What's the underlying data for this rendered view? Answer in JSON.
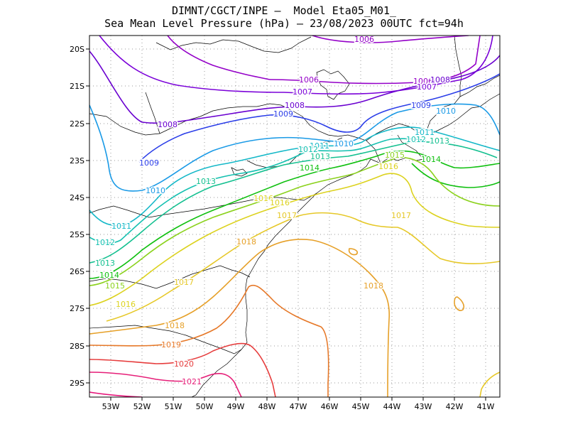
{
  "title": {
    "line1": "DIMNT/CGCT/INPE –  Model Eta05_M01_",
    "line2": "Sea Mean Level Pressure (hPa) – 23/08/2023 00UTC fct=94h"
  },
  "axes": {
    "lon_labels": [
      "53W",
      "52W",
      "51W",
      "50W",
      "49W",
      "48W",
      "47W",
      "46W",
      "45W",
      "44W",
      "43W",
      "42W",
      "41W"
    ],
    "lat_labels": [
      "20S",
      "21S",
      "22S",
      "23S",
      "24S",
      "25S",
      "26S",
      "27S",
      "28S",
      "29S"
    ]
  },
  "contour_labels": [
    {
      "text": "1006",
      "color": "#9400c8"
    },
    {
      "text": "1006",
      "color": "#9400c8"
    },
    {
      "text": "1006",
      "color": "#9400c8"
    },
    {
      "text": "1007",
      "color": "#7a00d8"
    },
    {
      "text": "1007",
      "color": "#7a00d8"
    },
    {
      "text": "1008",
      "color": "#6a00d0"
    },
    {
      "text": "1008",
      "color": "#6a00d0"
    },
    {
      "text": "1008",
      "color": "#6a00d0"
    },
    {
      "text": "1009",
      "color": "#2a3de8"
    },
    {
      "text": "1009",
      "color": "#2a3de8"
    },
    {
      "text": "1009",
      "color": "#2a3de8"
    },
    {
      "text": "1010",
      "color": "#1a9ae6"
    },
    {
      "text": "1010",
      "color": "#1a9ae6"
    },
    {
      "text": "1010",
      "color": "#1a9ae6"
    },
    {
      "text": "1011",
      "color": "#14b8c8"
    },
    {
      "text": "1011",
      "color": "#14b8c8"
    },
    {
      "text": "1011",
      "color": "#14b8c8"
    },
    {
      "text": "1012",
      "color": "#14c0b0"
    },
    {
      "text": "1012",
      "color": "#14c0b0"
    },
    {
      "text": "1012",
      "color": "#14c0b0"
    },
    {
      "text": "1013",
      "color": "#14c090"
    },
    {
      "text": "1013",
      "color": "#14c090"
    },
    {
      "text": "1013",
      "color": "#14c090"
    },
    {
      "text": "1013",
      "color": "#14c090"
    },
    {
      "text": "1014",
      "color": "#10c010"
    },
    {
      "text": "1014",
      "color": "#10c010"
    },
    {
      "text": "1014",
      "color": "#10c010"
    },
    {
      "text": "1015",
      "color": "#8cd21e"
    },
    {
      "text": "1015",
      "color": "#8cd21e"
    },
    {
      "text": "1016",
      "color": "#dcd21e"
    },
    {
      "text": "1016",
      "color": "#dcd21e"
    },
    {
      "text": "1016",
      "color": "#dcd21e"
    },
    {
      "text": "1016",
      "color": "#dcd21e"
    },
    {
      "text": "1017",
      "color": "#e6c828"
    },
    {
      "text": "1017",
      "color": "#e6c828"
    },
    {
      "text": "1017",
      "color": "#e6c828"
    },
    {
      "text": "1018",
      "color": "#e6a028"
    },
    {
      "text": "1018",
      "color": "#e6a028"
    },
    {
      "text": "1018",
      "color": "#e6a028"
    },
    {
      "text": "1019",
      "color": "#e67828"
    },
    {
      "text": "1020",
      "color": "#e63c3c"
    },
    {
      "text": "1021",
      "color": "#e61e78"
    }
  ]
}
